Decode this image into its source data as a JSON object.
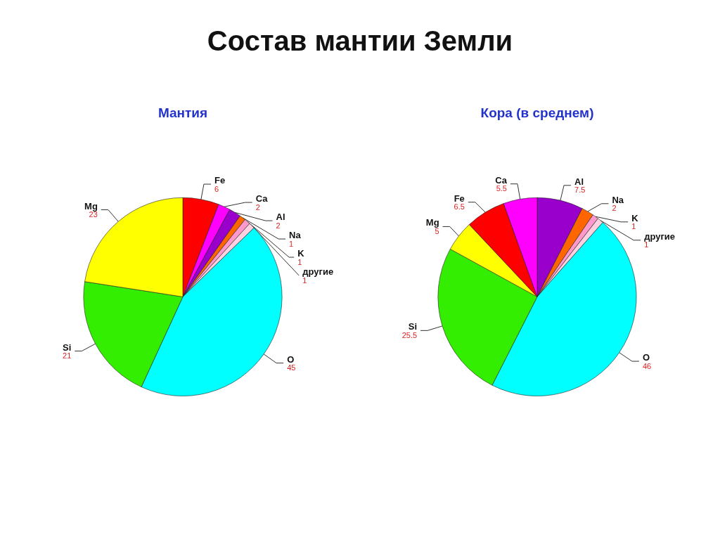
{
  "chart_data": [
    {
      "type": "pie",
      "title": "Мантия",
      "annotations": [
        "Состав мантии Земли"
      ],
      "categories": [
        "Fe",
        "Ca",
        "Al",
        "Na",
        "K",
        "другие",
        "O",
        "Si",
        "Mg"
      ],
      "values": [
        6,
        2,
        2,
        1,
        1,
        1,
        45,
        21,
        23
      ],
      "colors": [
        "#ff0000",
        "#ff00ff",
        "#9900cc",
        "#ff6600",
        "#ff99cc",
        "#ffd0e0",
        "#00ffff",
        "#33ee00",
        "#ffff00"
      ],
      "data_labels": true
    },
    {
      "type": "pie",
      "title": "Кора (в среднем)",
      "categories": [
        "Al",
        "Na",
        "K",
        "другие",
        "O",
        "Si",
        "Mg",
        "Fe",
        "Ca"
      ],
      "values": [
        7.5,
        2,
        1,
        1,
        46,
        25.5,
        5,
        6.5,
        5.5
      ],
      "colors": [
        "#9900cc",
        "#ff6600",
        "#ff99cc",
        "#ffd0e0",
        "#00ffff",
        "#33ee00",
        "#ffff00",
        "#ff0000",
        "#ff00ff"
      ],
      "data_labels": true
    }
  ]
}
